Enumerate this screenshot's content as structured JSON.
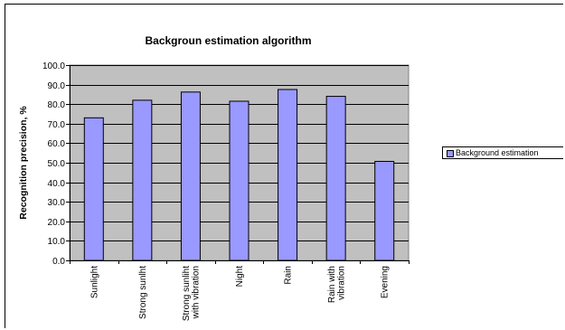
{
  "chart_data": {
    "type": "bar",
    "title": "Backgroun estimation algorithm",
    "xlabel": "",
    "ylabel": "Recognition precision, %",
    "categories": [
      "Sunlight",
      "Strong sunlht",
      "Strong sunliht with vibration",
      "Night",
      "Rain",
      "Rain with vibration",
      "Evening"
    ],
    "category_lines": [
      [
        "Sunlight"
      ],
      [
        "Strong sunlht"
      ],
      [
        "Strong sunliht",
        "with vibration"
      ],
      [
        "Night"
      ],
      [
        "Rain"
      ],
      [
        "Rain with",
        "vibration"
      ],
      [
        "Evening"
      ]
    ],
    "series": [
      {
        "name": "Background estimation",
        "values": [
          73,
          82,
          86.2,
          81.5,
          87.5,
          84,
          50.7
        ]
      }
    ],
    "ylim": [
      0,
      100
    ],
    "yticks": [
      "0.0",
      "10.0",
      "20.0",
      "30.0",
      "40.0",
      "50.0",
      "60.0",
      "70.0",
      "80.0",
      "90.0",
      "100.0"
    ],
    "grid": true,
    "legend_position": "right",
    "colors": {
      "bar": "#9999ff",
      "plot_bg": "#c0c0c0",
      "grid": "#000000"
    }
  }
}
